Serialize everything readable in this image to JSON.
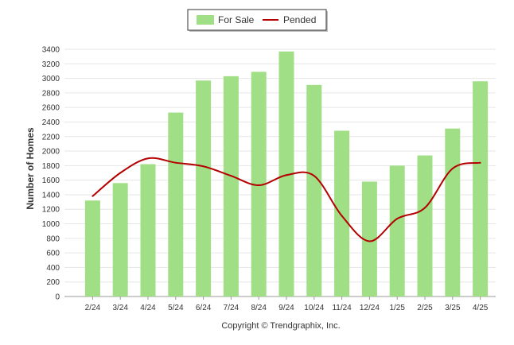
{
  "chart_data": {
    "type": "bar",
    "categories": [
      "2/24",
      "3/24",
      "4/24",
      "5/24",
      "6/24",
      "7/24",
      "8/24",
      "9/24",
      "10/24",
      "11/24",
      "12/24",
      "1/25",
      "2/25",
      "3/25",
      "4/25"
    ],
    "series": [
      {
        "name": "For Sale",
        "type": "bar",
        "color": "#a0df85",
        "values": [
          1320,
          1560,
          1820,
          2530,
          2970,
          3030,
          3090,
          3370,
          2910,
          2280,
          1580,
          1800,
          1940,
          2310,
          2960
        ]
      },
      {
        "name": "Pended",
        "type": "line",
        "color": "#b40000",
        "values": [
          1380,
          1700,
          1900,
          1840,
          1790,
          1660,
          1530,
          1670,
          1660,
          1110,
          760,
          1070,
          1220,
          1760,
          1840
        ]
      }
    ],
    "ylabel": "Number of Homes",
    "ylim": [
      0,
      3400
    ],
    "yticks": [
      0,
      200,
      400,
      600,
      800,
      1000,
      1200,
      1400,
      1600,
      1800,
      2000,
      2200,
      2400,
      2600,
      2800,
      3000,
      3200,
      3400
    ],
    "legend_position": "top-center",
    "grid": true
  },
  "footer": {
    "text": "Copyright © Trendgraphix, Inc."
  }
}
